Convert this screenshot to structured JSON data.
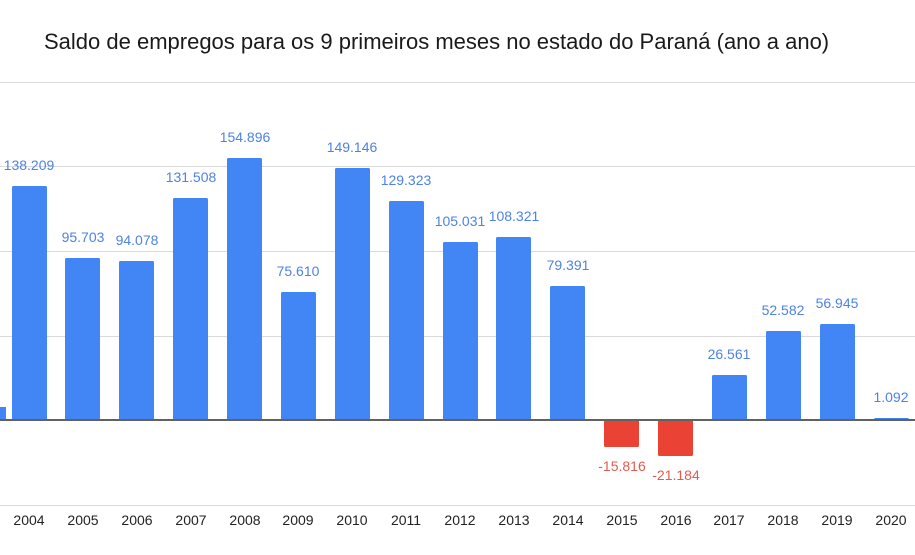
{
  "chart_data": {
    "type": "bar",
    "title": "Saldo de empregos para os 9 primeiros meses no estado do Paraná (ano a ano)",
    "categories": [
      "2004",
      "2005",
      "2006",
      "2007",
      "2008",
      "2009",
      "2010",
      "2011",
      "2012",
      "2013",
      "2014",
      "2015",
      "2016",
      "2017",
      "2018",
      "2019",
      "2020"
    ],
    "values": [
      138209,
      95703,
      94078,
      131508,
      154896,
      75610,
      149146,
      129323,
      105031,
      108321,
      79391,
      -15816,
      -21184,
      26561,
      52582,
      56945,
      1092
    ],
    "value_labels": [
      "138.209",
      "95.703",
      "94.078",
      "131.508",
      "154.896",
      "75.610",
      "149.146",
      "129.323",
      "105.031",
      "108.321",
      "79.391",
      "-15.816",
      "-21.184",
      "26.561",
      "52.582",
      "56.945",
      "1.092"
    ],
    "xlabel": "",
    "ylabel": "",
    "ylim": [
      -50000,
      200000
    ],
    "gridline_step": 50000,
    "gridline_values": [
      200000,
      150000,
      100000,
      50000,
      -50000
    ],
    "zero_line": true,
    "grid": true,
    "legend_position": "none",
    "y_axis_labels_visible": false,
    "clipped_partial_bar_left": {
      "present": true,
      "approx_value": 7700
    },
    "colors": {
      "bar_positive": "#4285F4",
      "bar_negative": "#EA4335",
      "label_positive": "#4E82E5",
      "label_negative": "#E25B4E",
      "axis_tick_label": "#222222",
      "gridline": "#DADADA",
      "zero_line": "#616161",
      "title": "#1A1A1A",
      "background": "#FFFFFF"
    }
  }
}
